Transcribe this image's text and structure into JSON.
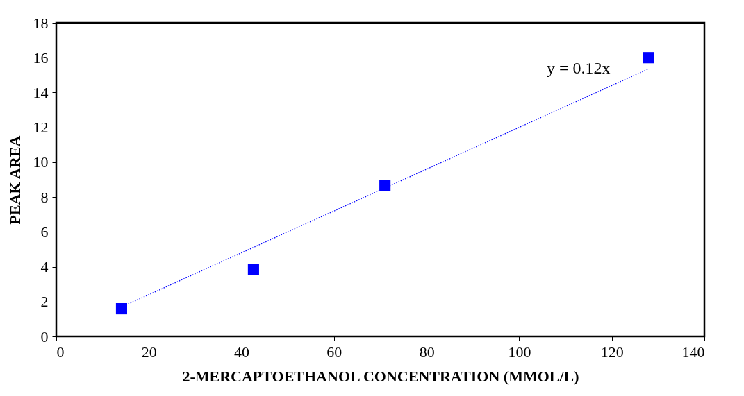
{
  "chart_data": {
    "type": "scatter",
    "xlabel": "2-MERCAPTOETHANOL CONCENTRATION (MMOL/L)",
    "ylabel": "PEAK AREA",
    "xlim": [
      0,
      140
    ],
    "xticks": [
      0,
      20,
      40,
      60,
      80,
      100,
      120,
      140
    ],
    "ylim": [
      0,
      18
    ],
    "yticks": [
      0,
      2,
      4,
      6,
      8,
      10,
      12,
      14,
      16,
      18
    ],
    "grid": false,
    "marker": "square",
    "series": [
      {
        "color": "#0000ff",
        "x": [
          14.1,
          42.6,
          71.0,
          127.9
        ],
        "values": [
          1.59,
          3.86,
          8.65,
          16.0
        ]
      },
      {
        "type": "line",
        "marker": "none",
        "color": "#0000ff",
        "line_style": "dotted",
        "x": [
          14.1,
          127.9
        ],
        "values": [
          1.69,
          15.35
        ]
      }
    ],
    "annotations": [
      "y = 0.12x"
    ]
  }
}
